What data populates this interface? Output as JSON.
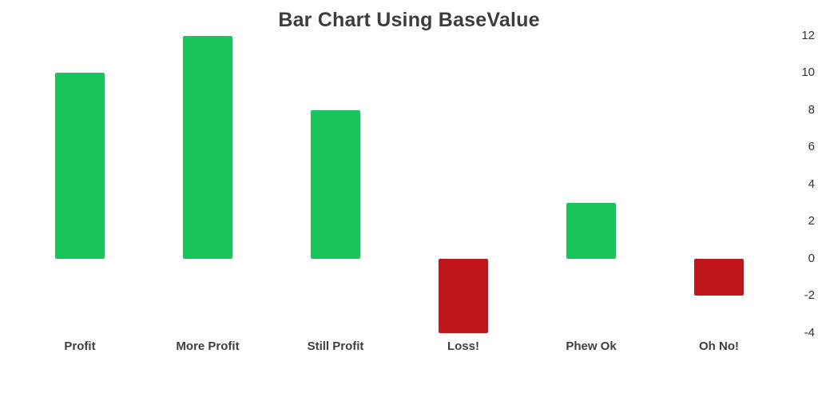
{
  "chart_data": {
    "type": "bar",
    "title": "Bar Chart Using BaseValue",
    "categories": [
      "Profit",
      "More Profit",
      "Still Profit",
      "Loss!",
      "Phew Ok",
      "Oh No!"
    ],
    "values": [
      10,
      12,
      8,
      -4,
      3,
      -2
    ],
    "base_value": 0,
    "y_ticks": [
      12,
      10,
      8,
      6,
      4,
      2,
      0,
      -2,
      -4
    ],
    "ylim": [
      -5,
      13
    ],
    "xlabel": "",
    "ylabel": "",
    "axis_position": "right",
    "grid": false,
    "legend": "none",
    "colors": {
      "positive_bar": "#1bc35c",
      "negative_bar": "#c1161b",
      "title_text": "#3d3d3d",
      "axis_text": "#3f3f3f",
      "background": "#ffffff"
    }
  }
}
